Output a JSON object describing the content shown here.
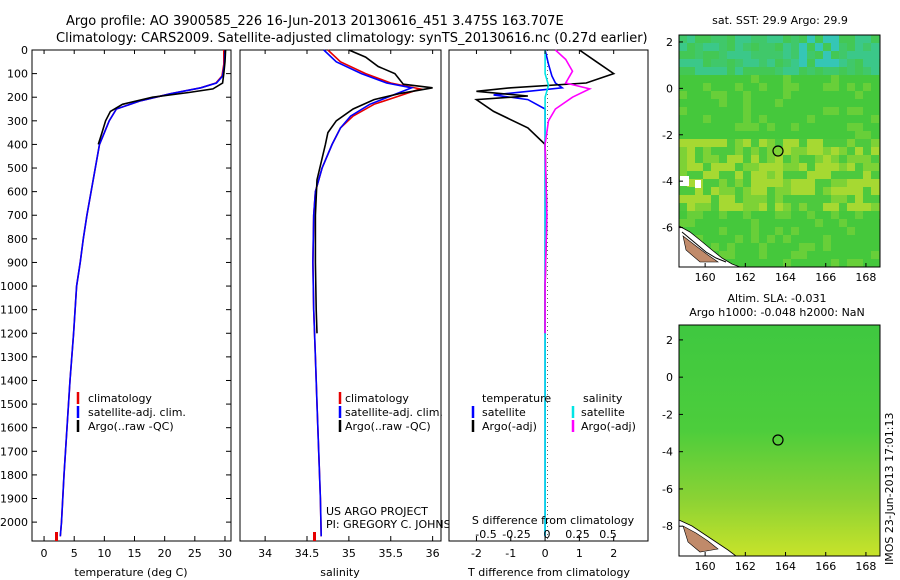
{
  "header": {
    "line1": "Argo profile: AO 3900585_226 16-Jun-2013 20130616_451 3.475S 163.707E",
    "line2": "Climatology: CARS2009. Satellite-adjusted climatology: synTS_20130616.nc (0.27d earlier)"
  },
  "credit": {
    "line1": "US ARGO PROJECT",
    "line2": "PI: GREGORY C. JOHNSON"
  },
  "footer_stamp": "IMOS 23-Jun-2013 17:01:13",
  "colors": {
    "climatology": "#e60000",
    "satellite": "#0000ff",
    "argo": "#000000",
    "salinity_sat": "#00e5e5",
    "salinity_argo": "#ff00ff"
  },
  "chart_data": [
    {
      "type": "line",
      "id": "temperature",
      "xlabel": "temperature (deg C)",
      "ylabel": "",
      "xlim": [
        -2,
        31
      ],
      "ylim": [
        2080,
        0
      ],
      "xticks": [
        0,
        5,
        10,
        15,
        20,
        25,
        30
      ],
      "yticks": [
        0,
        100,
        200,
        300,
        400,
        500,
        600,
        700,
        800,
        900,
        1000,
        1100,
        1200,
        1300,
        1400,
        1500,
        1600,
        1700,
        1800,
        1900,
        2000
      ],
      "legend": [
        "climatology",
        "satellite-adj. clim.",
        "Argo(..raw -QC)"
      ],
      "legend_position": "lower-center",
      "series": [
        {
          "name": "climatology",
          "points": [
            [
              29.8,
              0
            ],
            [
              29.8,
              60
            ],
            [
              29.5,
              110
            ],
            [
              28.5,
              140
            ],
            [
              26,
              160
            ],
            [
              21,
              185
            ],
            [
              16,
              215
            ],
            [
              12,
              250
            ],
            [
              10.8,
              300
            ],
            [
              10,
              350
            ],
            [
              9.2,
              400
            ],
            [
              8.5,
              500
            ],
            [
              7.8,
              600
            ],
            [
              7.1,
              700
            ],
            [
              6.5,
              800
            ],
            [
              6,
              900
            ],
            [
              5.4,
              1000
            ],
            [
              4.9,
              1200
            ],
            [
              4.3,
              1400
            ],
            [
              3.8,
              1600
            ],
            [
              3.3,
              1800
            ],
            [
              2.9,
              2000
            ],
            [
              2.7,
              2060
            ]
          ]
        },
        {
          "name": "satellite-adj. clim.",
          "points": [
            [
              30.0,
              0
            ],
            [
              29.9,
              60
            ],
            [
              29.6,
              110
            ],
            [
              28.6,
              140
            ],
            [
              26,
              160
            ],
            [
              21,
              185
            ],
            [
              16,
              215
            ],
            [
              12,
              250
            ],
            [
              10.8,
              300
            ],
            [
              10,
              350
            ],
            [
              9.2,
              400
            ],
            [
              8.5,
              500
            ],
            [
              7.8,
              600
            ],
            [
              7.1,
              700
            ],
            [
              6.5,
              800
            ],
            [
              6,
              900
            ],
            [
              5.4,
              1000
            ],
            [
              4.9,
              1200
            ],
            [
              4.3,
              1400
            ],
            [
              3.8,
              1600
            ],
            [
              3.3,
              1800
            ],
            [
              2.9,
              2000
            ],
            [
              2.7,
              2060
            ]
          ]
        },
        {
          "name": "Argo(..raw -QC)",
          "points": [
            [
              30.1,
              0
            ],
            [
              30.0,
              50
            ],
            [
              29.8,
              100
            ],
            [
              29.6,
              140
            ],
            [
              28,
              165
            ],
            [
              24,
              180
            ],
            [
              18,
              200
            ],
            [
              13,
              230
            ],
            [
              11,
              260
            ],
            [
              10.2,
              300
            ],
            [
              9.6,
              350
            ],
            [
              9,
              400
            ]
          ]
        }
      ]
    },
    {
      "type": "line",
      "id": "salinity",
      "xlabel": "salinity",
      "ylabel": "",
      "xlim": [
        33.7,
        36.1
      ],
      "ylim": [
        2080,
        0
      ],
      "xticks": [
        34,
        34.5,
        35,
        35.5,
        36
      ],
      "xtick_labels": [
        "34",
        "34.5",
        "35",
        "35.5",
        "36"
      ],
      "legend": [
        "climatology",
        "satellite-adj. clim.",
        "Argo(..raw -QC)"
      ],
      "legend_position": "lower-center",
      "series": [
        {
          "name": "climatology",
          "points": [
            [
              34.75,
              0
            ],
            [
              34.9,
              50
            ],
            [
              35.2,
              100
            ],
            [
              35.5,
              140
            ],
            [
              35.85,
              165
            ],
            [
              35.6,
              195
            ],
            [
              35.3,
              230
            ],
            [
              35.05,
              280
            ],
            [
              34.9,
              330
            ],
            [
              34.8,
              400
            ],
            [
              34.68,
              500
            ],
            [
              34.6,
              600
            ],
            [
              34.58,
              700
            ],
            [
              34.57,
              900
            ],
            [
              34.58,
              1100
            ],
            [
              34.6,
              1300
            ],
            [
              34.62,
              1500
            ],
            [
              34.64,
              1700
            ],
            [
              34.66,
              1900
            ],
            [
              34.67,
              2060
            ]
          ]
        },
        {
          "name": "satellite-adj. clim.",
          "points": [
            [
              34.7,
              0
            ],
            [
              34.85,
              50
            ],
            [
              35.15,
              100
            ],
            [
              35.45,
              140
            ],
            [
              35.75,
              160
            ],
            [
              35.5,
              195
            ],
            [
              35.25,
              230
            ],
            [
              35.02,
              280
            ],
            [
              34.9,
              330
            ],
            [
              34.8,
              400
            ],
            [
              34.68,
              500
            ],
            [
              34.6,
              600
            ],
            [
              34.58,
              700
            ],
            [
              34.57,
              900
            ],
            [
              34.58,
              1100
            ],
            [
              34.6,
              1300
            ],
            [
              34.62,
              1500
            ],
            [
              34.64,
              1700
            ],
            [
              34.66,
              1900
            ],
            [
              34.67,
              2060
            ]
          ]
        },
        {
          "name": "Argo(..raw -QC)",
          "points": [
            [
              35.0,
              0
            ],
            [
              35.2,
              30
            ],
            [
              35.35,
              70
            ],
            [
              35.55,
              100
            ],
            [
              35.65,
              145
            ],
            [
              36.0,
              160
            ],
            [
              35.6,
              185
            ],
            [
              35.3,
              210
            ],
            [
              35.05,
              250
            ],
            [
              34.85,
              300
            ],
            [
              34.75,
              350
            ],
            [
              34.72,
              400
            ],
            [
              34.62,
              550
            ],
            [
              34.6,
              700
            ],
            [
              34.6,
              900
            ],
            [
              34.61,
              1100
            ],
            [
              34.62,
              1200
            ]
          ]
        }
      ]
    },
    {
      "type": "line",
      "id": "difference",
      "xlabel": "T difference from climatology",
      "xlabel_top": "S difference from climatology",
      "ylim": [
        2080,
        0
      ],
      "xlim": [
        -2.8,
        3.0
      ],
      "xticks": [
        -2,
        -1,
        0,
        1,
        2
      ],
      "xtick_labels": [
        "-2",
        "-1",
        "0",
        "1",
        "2"
      ],
      "s_xticks": [
        -0.5,
        -0.25,
        0,
        0.25,
        0.5
      ],
      "s_xtick_labels": [
        "-0.5",
        "-0.25",
        "0",
        "0.25",
        "0.5"
      ],
      "legend_headers": [
        "temperature",
        "salinity"
      ],
      "legend": [
        "satellite",
        "Argo(-adj)",
        "satellite",
        "Argo(-adj)"
      ],
      "series": [
        {
          "name": "satellite",
          "group": "temperature",
          "points": [
            [
              0,
              0
            ],
            [
              0.1,
              60
            ],
            [
              0.2,
              110
            ],
            [
              0.3,
              140
            ],
            [
              0.5,
              160
            ],
            [
              -1.5,
              190
            ],
            [
              -0.5,
              210
            ],
            [
              0,
              250
            ],
            [
              0,
              300
            ],
            [
              0,
              500
            ],
            [
              0,
              1000
            ],
            [
              0,
              2060
            ]
          ]
        },
        {
          "name": "Argo(-adj)",
          "group": "temperature",
          "points": [
            [
              1.0,
              0
            ],
            [
              1.5,
              50
            ],
            [
              2.0,
              100
            ],
            [
              1.2,
              140
            ],
            [
              -1.0,
              160
            ],
            [
              -2.0,
              175
            ],
            [
              -0.5,
              195
            ],
            [
              -2.0,
              210
            ],
            [
              -1.5,
              260
            ],
            [
              -0.5,
              330
            ],
            [
              0,
              400
            ],
            [
              0.05,
              700
            ],
            [
              0,
              1000
            ],
            [
              0,
              1200
            ]
          ]
        },
        {
          "name": "satellite",
          "group": "salinity",
          "points": [
            [
              0,
              0
            ],
            [
              0,
              100
            ],
            [
              0.1,
              150
            ],
            [
              0,
              200
            ],
            [
              0,
              300
            ],
            [
              0,
              600
            ],
            [
              0,
              1000
            ],
            [
              0,
              1500
            ],
            [
              0,
              2060
            ]
          ]
        },
        {
          "name": "Argo(-adj)",
          "group": "salinity",
          "points": [
            [
              0.3,
              0
            ],
            [
              0.6,
              40
            ],
            [
              0.8,
              90
            ],
            [
              0.6,
              140
            ],
            [
              1.3,
              165
            ],
            [
              0.8,
              200
            ],
            [
              0.3,
              250
            ],
            [
              0.1,
              300
            ],
            [
              0,
              400
            ],
            [
              0.05,
              700
            ],
            [
              0,
              1000
            ],
            [
              0,
              1200
            ]
          ]
        }
      ]
    },
    {
      "type": "heatmap",
      "id": "sst-map",
      "title": "sat. SST: 29.9 Argo: 29.9",
      "xticks": [
        160,
        162,
        164,
        166,
        168
      ],
      "yticks": [
        2,
        0,
        -2,
        -4,
        -6
      ],
      "xlim": [
        158.7,
        168.7
      ],
      "ylim": [
        -7.7,
        2.3
      ],
      "marker": [
        163.707,
        -3.475
      ]
    },
    {
      "type": "heatmap",
      "id": "sla-map",
      "title": "Altim. SLA: -0.031",
      "subtitle": "Argo h1000: -0.048 h2000: NaN",
      "xticks": [
        160,
        162,
        164,
        166,
        168
      ],
      "yticks": [
        2,
        0,
        -2,
        -4,
        -6,
        -8
      ],
      "xlim": [
        158.7,
        168.7
      ],
      "ylim": [
        -9.6,
        2.8
      ],
      "marker": [
        163.707,
        -3.475
      ]
    }
  ]
}
